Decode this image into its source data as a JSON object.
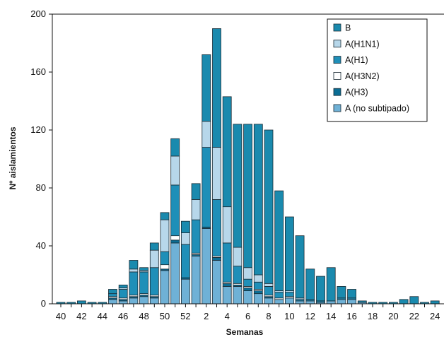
{
  "chart_data": {
    "type": "bar",
    "stacked": true,
    "title": "",
    "xlabel": "Semanas",
    "ylabel": "Nº aislamientos",
    "ylim": [
      0,
      200
    ],
    "yticks": [
      0,
      40,
      80,
      120,
      160,
      200
    ],
    "grid": false,
    "legend_position": "top-right",
    "categories": [
      "40",
      "41",
      "42",
      "43",
      "44",
      "45",
      "46",
      "47",
      "48",
      "49",
      "50",
      "51",
      "52",
      "1",
      "2",
      "3",
      "4",
      "5",
      "6",
      "7",
      "8",
      "9",
      "10",
      "11",
      "12",
      "13",
      "14",
      "15",
      "16",
      "17",
      "18",
      "19",
      "20",
      "21",
      "22",
      "23",
      "24"
    ],
    "xtick_labels": [
      "40",
      "42",
      "44",
      "46",
      "48",
      "50",
      "52",
      "2",
      "4",
      "6",
      "8",
      "10",
      "12",
      "14",
      "16",
      "18",
      "20",
      "22",
      "24"
    ],
    "series": [
      {
        "name": "A (no subtipado)",
        "color": "#6fb1d6",
        "values": [
          0,
          0,
          0,
          0,
          0,
          3,
          2,
          4,
          5,
          4,
          23,
          42,
          17,
          33,
          52,
          30,
          12,
          12,
          9,
          7,
          4,
          3,
          4,
          2,
          2,
          1,
          2,
          3,
          3,
          1,
          0,
          0,
          0,
          0,
          0,
          0,
          0
        ]
      },
      {
        "name": "A(H3)",
        "color": "#0b6d94",
        "values": [
          0,
          0,
          0,
          0,
          0,
          1,
          1,
          1,
          1,
          1,
          1,
          2,
          1,
          1,
          1,
          2,
          2,
          1,
          2,
          2,
          1,
          0,
          0,
          0,
          0,
          0,
          0,
          0,
          0,
          0,
          0,
          0,
          0,
          0,
          0,
          0,
          0
        ]
      },
      {
        "name": "A(H3N2)",
        "color": "#ffffff",
        "values": [
          0,
          0,
          0,
          0,
          0,
          1,
          1,
          1,
          1,
          1,
          3,
          3,
          0,
          1,
          0,
          1,
          1,
          1,
          1,
          1,
          1,
          1,
          1,
          0,
          0,
          0,
          0,
          0,
          0,
          0,
          0,
          0,
          0,
          0,
          0,
          0,
          0
        ]
      },
      {
        "name": "A(H1)",
        "color": "#1f8fb8",
        "values": [
          0,
          0,
          0,
          0,
          0,
          2,
          6,
          16,
          15,
          19,
          9,
          35,
          23,
          23,
          55,
          39,
          27,
          12,
          5,
          5,
          6,
          4,
          3,
          1,
          1,
          1,
          0,
          1,
          1,
          0,
          0,
          0,
          0,
          0,
          0,
          0,
          0
        ]
      },
      {
        "name": "A(H1N1)",
        "color": "#b7d7ea",
        "values": [
          0,
          0,
          0,
          0,
          0,
          0,
          1,
          2,
          1,
          12,
          22,
          20,
          8,
          14,
          18,
          36,
          25,
          13,
          8,
          5,
          2,
          1,
          1,
          1,
          0,
          0,
          0,
          0,
          0,
          0,
          0,
          0,
          0,
          0,
          0,
          0,
          0
        ]
      },
      {
        "name": "B",
        "color": "#1a8aae",
        "values": [
          1,
          1,
          2,
          1,
          1,
          3,
          2,
          6,
          2,
          5,
          5,
          12,
          8,
          11,
          46,
          82,
          76,
          85,
          99,
          104,
          106,
          69,
          51,
          43,
          21,
          17,
          23,
          8,
          6,
          1,
          1,
          1,
          1,
          3,
          5,
          1,
          2
        ]
      }
    ]
  }
}
